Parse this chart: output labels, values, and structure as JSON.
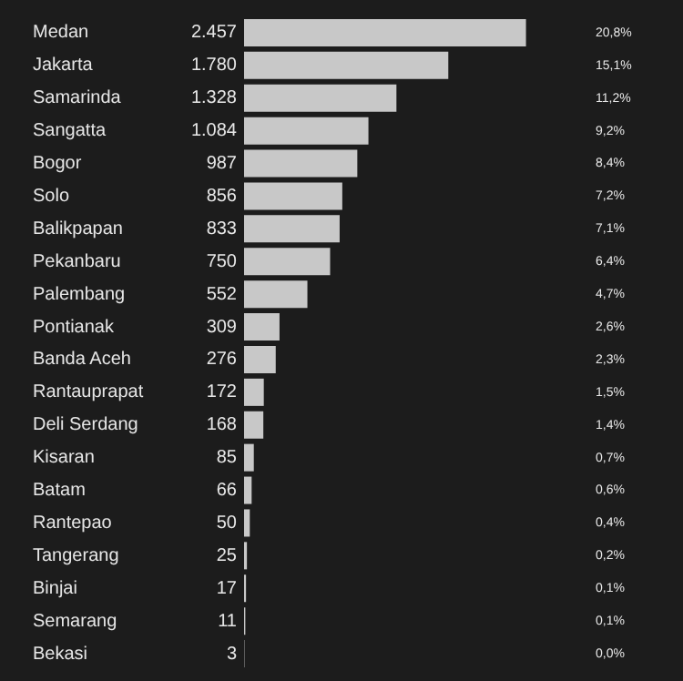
{
  "chart_data": {
    "type": "bar",
    "orientation": "horizontal",
    "categories": [
      "Medan",
      "Jakarta",
      "Samarinda",
      "Sangatta",
      "Bogor",
      "Solo",
      "Balikpapan",
      "Pekanbaru",
      "Palembang",
      "Pontianak",
      "Banda Aceh",
      "Rantauprapat",
      "Deli Serdang",
      "Kisaran",
      "Batam",
      "Rantepao",
      "Tangerang",
      "Binjai",
      "Semarang",
      "Bekasi"
    ],
    "values": [
      2457,
      1780,
      1328,
      1084,
      987,
      856,
      833,
      750,
      552,
      309,
      276,
      172,
      168,
      85,
      66,
      50,
      25,
      17,
      11,
      3
    ],
    "value_labels": [
      "2.457",
      "1.780",
      "1.328",
      "1.084",
      "987",
      "856",
      "833",
      "750",
      "552",
      "309",
      "276",
      "172",
      "168",
      "85",
      "66",
      "50",
      "25",
      "17",
      "11",
      "3"
    ],
    "color": "#c8c8c8",
    "annotations": [
      "20,8%",
      "15,1%",
      "11,2%",
      "9,2%",
      "8,4%",
      "7,2%",
      "7,1%",
      "6,4%",
      "4,7%",
      "2,6%",
      "2,3%",
      "1,5%",
      "1,4%",
      "0,7%",
      "0,6%",
      "0,4%",
      "0,2%",
      "0,1%",
      "0,1%",
      "0,0%"
    ],
    "grid": false,
    "legend": false
  }
}
